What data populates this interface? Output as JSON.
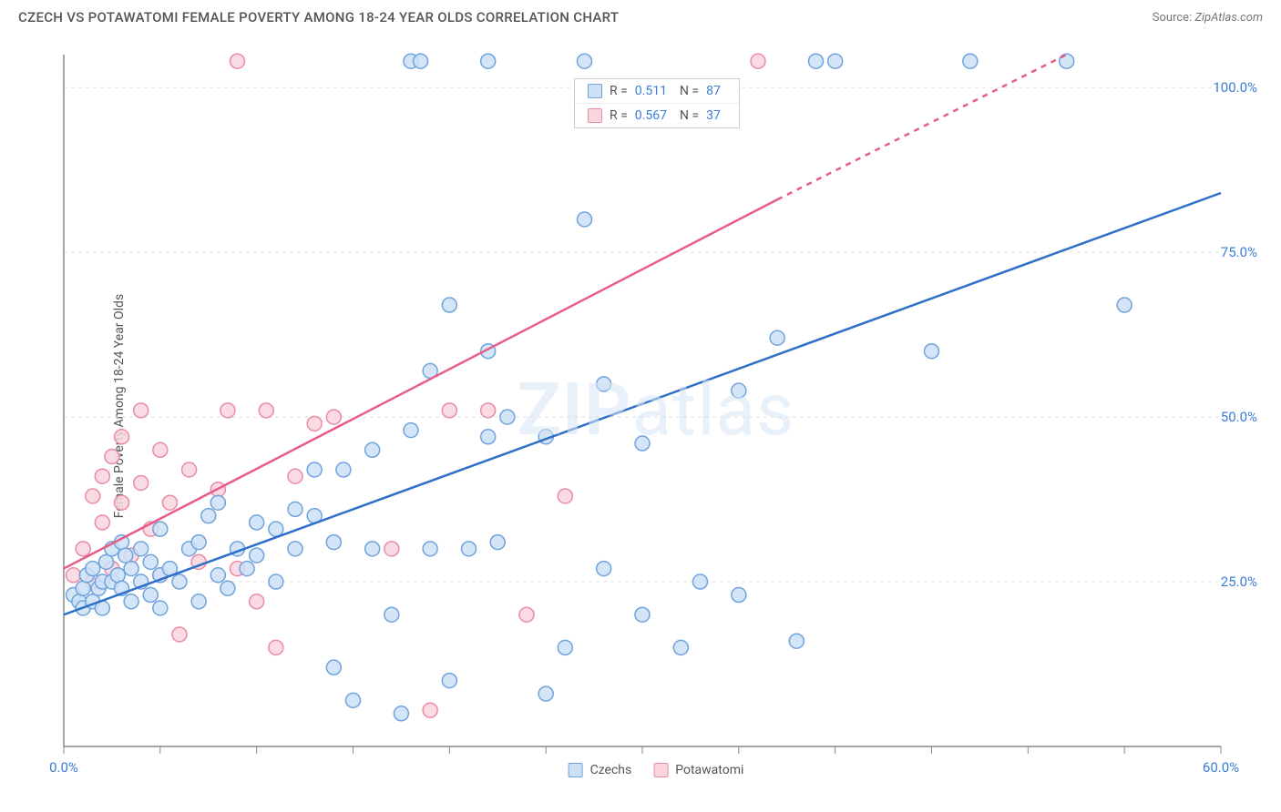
{
  "header": {
    "title": "CZECH VS POTAWATOMI FEMALE POVERTY AMONG 18-24 YEAR OLDS CORRELATION CHART",
    "source_label": "Source:",
    "source_value": "ZipAtlas.com"
  },
  "chart": {
    "type": "scatter",
    "y_axis_label": "Female Poverty Among 18-24 Year Olds",
    "watermark": {
      "bold": "ZIP",
      "rest": "atlas"
    },
    "xlim": [
      0,
      60
    ],
    "ylim": [
      0,
      105
    ],
    "x_ticks": [
      0,
      5,
      10,
      15,
      20,
      25,
      30,
      35,
      40,
      45,
      50,
      55,
      60
    ],
    "x_tick_labels": {
      "0": "0.0%",
      "60": "60.0%"
    },
    "y_ticks": [
      25,
      50,
      75,
      100
    ],
    "y_tick_labels": {
      "25": "25.0%",
      "50": "50.0%",
      "75": "75.0%",
      "100": "100.0%"
    },
    "grid_color": "#e0e0e0",
    "axis_color": "#888",
    "background_color": "#ffffff",
    "marker_radius": 8,
    "marker_stroke_width": 1.5,
    "line_width": 2.5,
    "series": {
      "czechs": {
        "label": "Czechs",
        "fill": "#cde0f6",
        "stroke": "#6fa3dd",
        "line_color": "#2e6fc7",
        "r_value": "0.511",
        "n_value": "87",
        "trend": {
          "x1": 0,
          "y1": 20,
          "x2": 60,
          "y2": 84
        },
        "points": [
          [
            0.5,
            23
          ],
          [
            0.8,
            22
          ],
          [
            1,
            24
          ],
          [
            1,
            21
          ],
          [
            1.2,
            26
          ],
          [
            1.5,
            27
          ],
          [
            1.5,
            22
          ],
          [
            1.8,
            24
          ],
          [
            2,
            25
          ],
          [
            2,
            21
          ],
          [
            2.2,
            28
          ],
          [
            2.5,
            30
          ],
          [
            2.5,
            25
          ],
          [
            2.8,
            26
          ],
          [
            3,
            24
          ],
          [
            3,
            31
          ],
          [
            3.2,
            29
          ],
          [
            3.5,
            22
          ],
          [
            3.5,
            27
          ],
          [
            4,
            25
          ],
          [
            4,
            30
          ],
          [
            4.5,
            28
          ],
          [
            4.5,
            23
          ],
          [
            5,
            26
          ],
          [
            5,
            33
          ],
          [
            5,
            21
          ],
          [
            5.5,
            27
          ],
          [
            6,
            25
          ],
          [
            6.5,
            30
          ],
          [
            7,
            31
          ],
          [
            7,
            22
          ],
          [
            7.5,
            35
          ],
          [
            8,
            26
          ],
          [
            8,
            37
          ],
          [
            8.5,
            24
          ],
          [
            9,
            30
          ],
          [
            9.5,
            27
          ],
          [
            10,
            34
          ],
          [
            10,
            29
          ],
          [
            11,
            33
          ],
          [
            11,
            25
          ],
          [
            12,
            36
          ],
          [
            12,
            30
          ],
          [
            13,
            42
          ],
          [
            13,
            35
          ],
          [
            14,
            31
          ],
          [
            14,
            12
          ],
          [
            14.5,
            42
          ],
          [
            15,
            7
          ],
          [
            16,
            30
          ],
          [
            16,
            45
          ],
          [
            17,
            20
          ],
          [
            17.5,
            5
          ],
          [
            18,
            48
          ],
          [
            19,
            30
          ],
          [
            19,
            57
          ],
          [
            20,
            10
          ],
          [
            20,
            67
          ],
          [
            21,
            30
          ],
          [
            22,
            47
          ],
          [
            22,
            60
          ],
          [
            22.5,
            31
          ],
          [
            23,
            50
          ],
          [
            25,
            8
          ],
          [
            25,
            47
          ],
          [
            26,
            15
          ],
          [
            27,
            80
          ],
          [
            28,
            55
          ],
          [
            28,
            27
          ],
          [
            30,
            20
          ],
          [
            30,
            46
          ],
          [
            32,
            15
          ],
          [
            33,
            25
          ],
          [
            35,
            54
          ],
          [
            35,
            23
          ],
          [
            37,
            62
          ],
          [
            38,
            16
          ],
          [
            45,
            60
          ],
          [
            47,
            104
          ],
          [
            55,
            67
          ],
          [
            18,
            104
          ],
          [
            18.5,
            104
          ],
          [
            22,
            104
          ],
          [
            27,
            104
          ],
          [
            39,
            104
          ],
          [
            40,
            104
          ],
          [
            52,
            104
          ]
        ]
      },
      "potawatomi": {
        "label": "Potawatomi",
        "fill": "#f9d5de",
        "stroke": "#e98ba3",
        "line_color": "#e85d88",
        "r_value": "0.567",
        "n_value": "37",
        "trend_solid": {
          "x1": 0,
          "y1": 27,
          "x2": 37,
          "y2": 83
        },
        "trend_dashed": {
          "x1": 37,
          "y1": 83,
          "x2": 52,
          "y2": 105
        },
        "points": [
          [
            0.5,
            26
          ],
          [
            1,
            30
          ],
          [
            1.5,
            38
          ],
          [
            1.5,
            25
          ],
          [
            2,
            34
          ],
          [
            2,
            41
          ],
          [
            2.5,
            44
          ],
          [
            2.5,
            27
          ],
          [
            3,
            37
          ],
          [
            3,
            47
          ],
          [
            3.5,
            29
          ],
          [
            4,
            40
          ],
          [
            4,
            51
          ],
          [
            4.5,
            33
          ],
          [
            5,
            45
          ],
          [
            5,
            26
          ],
          [
            5.5,
            37
          ],
          [
            6,
            17
          ],
          [
            6.5,
            42
          ],
          [
            7,
            28
          ],
          [
            8,
            39
          ],
          [
            8.5,
            51
          ],
          [
            9,
            27
          ],
          [
            10,
            22
          ],
          [
            10.5,
            51
          ],
          [
            11,
            15
          ],
          [
            12,
            41
          ],
          [
            13,
            49
          ],
          [
            14,
            50
          ],
          [
            17,
            30
          ],
          [
            19,
            5.5
          ],
          [
            20,
            51
          ],
          [
            22,
            51
          ],
          [
            24,
            20
          ],
          [
            26,
            38
          ],
          [
            9,
            104
          ],
          [
            36,
            104
          ]
        ]
      }
    },
    "legend_top": {
      "r_label": "R =",
      "n_label": "N ="
    }
  }
}
